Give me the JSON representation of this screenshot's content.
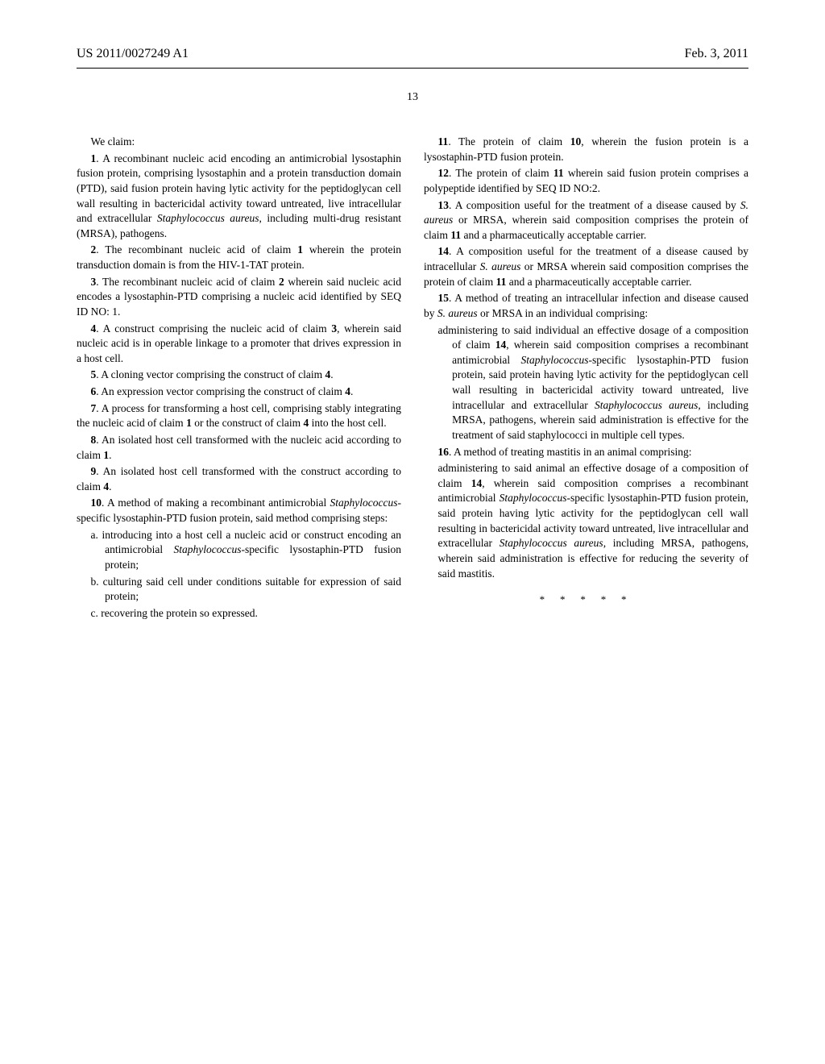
{
  "header": {
    "publication_number": "US 2011/0027249 A1",
    "date": "Feb. 3, 2011"
  },
  "page_number": "13",
  "intro": "We claim:",
  "claims": {
    "c1": {
      "num": "1",
      "text_a": ". A recombinant nucleic acid encoding an antimicrobial lysostaphin fusion protein, comprising lysostaphin and a protein transduction domain (PTD), said fusion protein having lytic activity for the peptidoglycan cell wall resulting in bactericidal activity toward untreated, live intracellular and extracellular ",
      "italic": "Staphylococcus aureus",
      "text_b": ", including multi-drug resistant (MRSA), pathogens."
    },
    "c2": {
      "num": "2",
      "text_a": ". The recombinant nucleic acid of claim ",
      "ref": "1",
      "text_b": " wherein the protein transduction domain is from the HIV-1-TAT protein."
    },
    "c3": {
      "num": "3",
      "text_a": ". The recombinant nucleic acid of claim ",
      "ref": "2",
      "text_b": " wherein said nucleic acid encodes a lysostaphin-PTD comprising a nucleic acid identified by SEQ ID NO: 1."
    },
    "c4": {
      "num": "4",
      "text_a": ". A construct comprising the nucleic acid of claim ",
      "ref": "3",
      "text_b": ", wherein said nucleic acid is in operable linkage to a promoter that drives expression in a host cell."
    },
    "c5": {
      "num": "5",
      "text_a": ". A cloning vector comprising the construct of claim ",
      "ref": "4",
      "text_b": "."
    },
    "c6": {
      "num": "6",
      "text_a": ". An expression vector comprising the construct of claim ",
      "ref": "4",
      "text_b": "."
    },
    "c7": {
      "num": "7",
      "text_a": ". A process for transforming a host cell, comprising stably integrating the nucleic acid of claim ",
      "ref1": "1",
      "text_b": " or the construct of claim ",
      "ref2": "4",
      "text_c": " into the host cell."
    },
    "c8": {
      "num": "8",
      "text_a": ". An isolated host cell transformed with the nucleic acid according to claim ",
      "ref": "1",
      "text_b": "."
    },
    "c9": {
      "num": "9",
      "text_a": ". An isolated host cell transformed with the construct according to claim ",
      "ref": "4",
      "text_b": "."
    },
    "c10": {
      "num": "10",
      "text_a": ". A method of making a recombinant antimicrobial ",
      "italic": "Staphylococcus",
      "text_b": "-specific lysostaphin-PTD fusion protein, said method comprising steps:",
      "sub_a_1": "a. introducing into a host cell a nucleic acid or construct encoding an antimicrobial ",
      "sub_a_italic": "Staphylococcus",
      "sub_a_2": "-specific lysostaphin-PTD fusion protein;",
      "sub_b": "b. culturing said cell under conditions suitable for expression of said protein;",
      "sub_c": "c. recovering the protein so expressed."
    },
    "c11": {
      "num": "11",
      "text_a": ". The protein of claim ",
      "ref": "10",
      "text_b": ", wherein the fusion protein is a lysostaphin-PTD fusion protein."
    },
    "c12": {
      "num": "12",
      "text_a": ". The protein of claim ",
      "ref": "11",
      "text_b": " wherein said fusion protein comprises a polypeptide identified by SEQ ID NO:2."
    },
    "c13": {
      "num": "13",
      "text_a": ". A composition useful for the treatment of a disease caused by ",
      "italic": "S. aureus",
      "text_b": " or MRSA, wherein said composition comprises the protein of claim ",
      "ref": "11",
      "text_c": " and a pharmaceutically acceptable carrier."
    },
    "c14": {
      "num": "14",
      "text_a": ". A composition useful for the treatment of a disease caused by intracellular ",
      "italic": "S. aureus",
      "text_b": " or MRSA wherein said composition comprises the protein of claim ",
      "ref": "11",
      "text_c": " and a pharmaceutically acceptable carrier."
    },
    "c15": {
      "num": "15",
      "text_a": ". A method of treating an intracellular infection and disease caused by ",
      "italic": "S. aureus",
      "text_b": " or MRSA in an individual comprising:",
      "sub_a": "administering to said individual an effective dosage of a composition of claim ",
      "sub_ref": "14",
      "sub_b": ", wherein said composition comprises a recombinant antimicrobial ",
      "sub_italic1": "Staphylococcus",
      "sub_c": "-specific lysostaphin-PTD fusion protein, said protein having lytic activity for the peptidoglycan cell wall resulting in bactericidal activity toward untreated, live intracellular and extracellular ",
      "sub_italic2": "Staphylococcus aureus",
      "sub_d": ", including MRSA, pathogens, wherein said administration is effective for the treatment of said staphylococci in multiple cell types."
    },
    "c16": {
      "num": "16",
      "text_a": ". A method of treating mastitis in an animal comprising:",
      "sub_a": "administering to said animal an effective dosage of a composition of claim ",
      "sub_ref": "14",
      "sub_b": ", wherein said composition comprises a recombinant antimicrobial ",
      "sub_italic1": "Staphylococcus",
      "sub_c": "-specific lysostaphin-PTD fusion protein, said protein having lytic activity for the peptidoglycan cell wall resulting in bactericidal activity toward untreated, live intracellular and extracellular ",
      "sub_italic2": "Staphylococcus aureus",
      "sub_d": ", including MRSA, pathogens, wherein said administration is effective for reducing the severity of said mastitis."
    }
  },
  "end_marks": "* * * * *"
}
